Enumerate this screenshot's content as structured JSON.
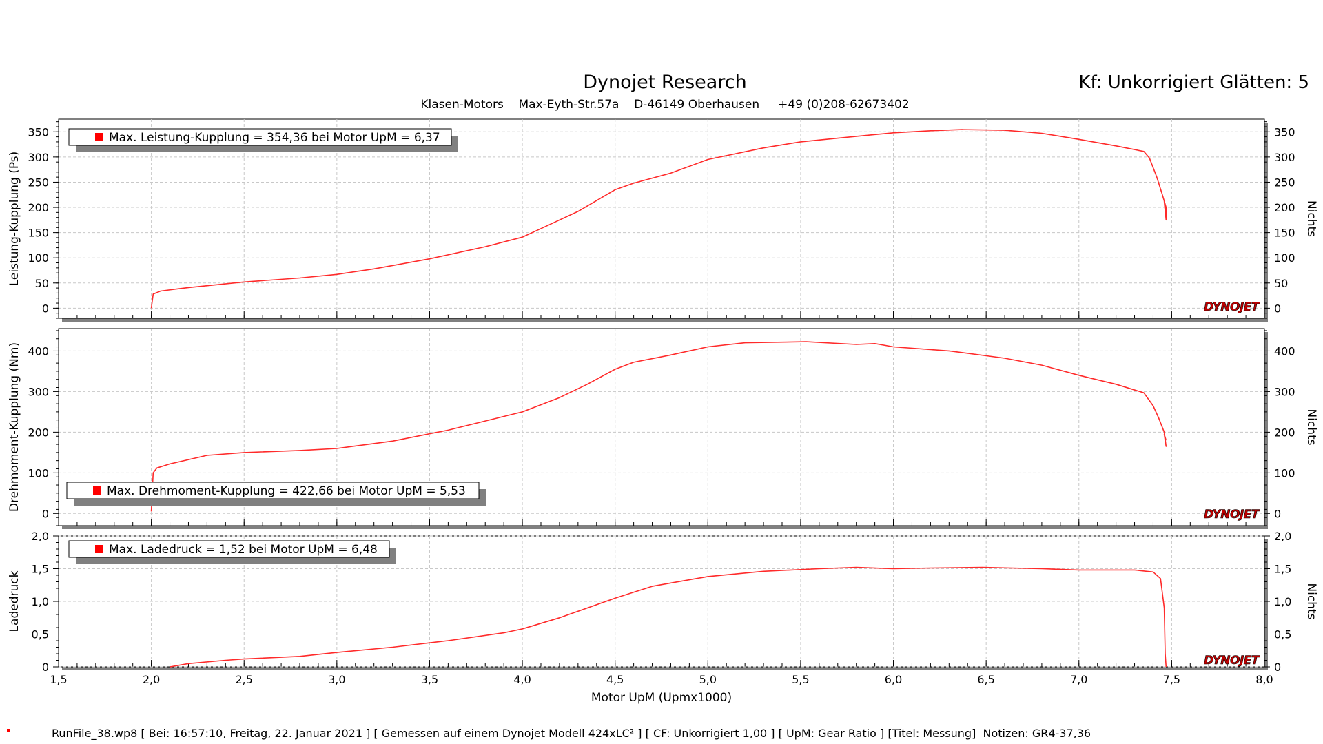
{
  "header": {
    "title": "Dynojet Research",
    "subtitle": "Klasen-Motors    Max-Eyth-Str.57a    D-46149 Oberhausen     +49 (0)208-62673402",
    "correction": "Kf: Unkorrigiert Glätten: 5"
  },
  "footer": {
    "text": "RunFile_38.wp8 [ Bei: 16:57:10, Freitag, 22. Januar 2021 ] [ Gemessen auf einem Dynojet Modell 424xLC² ] [ CF: Unkorrigiert 1,00 ] [ UpM: Gear Ratio ] [Titel: Messung]  Notizen: GR4-37,36"
  },
  "logo": {
    "text": "DYNOJET"
  },
  "colors": {
    "trace": "#ff2a2a",
    "legend_marker": "#ff0000",
    "shadow": "#808080",
    "grid": "#c8c8c8"
  },
  "chart_data": [
    {
      "type": "line",
      "ylabel": "Leistung-Kupplung (Ps)",
      "right_label": "Nichts",
      "xlabel": "Motor UpM (Upmx1000)",
      "xlim": [
        1.5,
        8.0
      ],
      "ylim": [
        -20,
        375
      ],
      "yticks": [
        0,
        50,
        100,
        150,
        200,
        250,
        300,
        350
      ],
      "ytick_labels": [
        "0",
        "50",
        "100",
        "150",
        "200",
        "250",
        "300",
        "350"
      ],
      "grid": true,
      "legend": "Max. Leistung-Kupplung = 354,36 bei Motor UpM = 6,37",
      "series": [
        {
          "name": "Leistung-Kupplung",
          "x": [
            2.0,
            2.01,
            2.05,
            2.2,
            2.5,
            2.8,
            3.0,
            3.2,
            3.5,
            3.8,
            4.0,
            4.1,
            4.3,
            4.5,
            4.6,
            4.8,
            5.0,
            5.3,
            5.5,
            5.8,
            6.0,
            6.2,
            6.37,
            6.6,
            6.8,
            7.0,
            7.2,
            7.35,
            7.38,
            7.42,
            7.45,
            7.47,
            7.47,
            7.46,
            7.47
          ],
          "y": [
            0,
            28,
            34,
            41,
            52,
            60,
            67,
            78,
            98,
            122,
            141,
            158,
            192,
            235,
            248,
            268,
            295,
            318,
            330,
            341,
            348,
            352,
            354.36,
            353,
            347,
            335,
            322,
            311,
            298,
            260,
            225,
            200,
            175,
            212,
            195
          ]
        }
      ]
    },
    {
      "type": "line",
      "ylabel": "Drehmoment-Kupplung (Nm)",
      "right_label": "Nichts",
      "xlabel": "Motor UpM (Upmx1000)",
      "xlim": [
        1.5,
        8.0
      ],
      "ylim": [
        -30,
        455
      ],
      "yticks": [
        0,
        100,
        200,
        300,
        400
      ],
      "ytick_labels": [
        "0",
        "100",
        "200",
        "300",
        "400"
      ],
      "grid": true,
      "legend": "Max. Drehmoment-Kupplung = 422,66 bei Motor UpM = 5,53",
      "series": [
        {
          "name": "Drehmoment-Kupplung",
          "x": [
            2.0,
            2.01,
            2.03,
            2.1,
            2.3,
            2.5,
            2.8,
            3.0,
            3.3,
            3.6,
            4.0,
            4.2,
            4.35,
            4.5,
            4.6,
            4.8,
            5.0,
            5.2,
            5.53,
            5.8,
            5.9,
            6.0,
            6.3,
            6.6,
            6.8,
            7.0,
            7.2,
            7.35,
            7.4,
            7.43,
            7.46,
            7.47,
            7.46,
            7.47
          ],
          "y": [
            5,
            100,
            112,
            122,
            143,
            150,
            155,
            160,
            178,
            205,
            250,
            285,
            318,
            355,
            372,
            390,
            410,
            420,
            422.66,
            416,
            418,
            410,
            400,
            382,
            365,
            340,
            318,
            297,
            265,
            235,
            200,
            165,
            195,
            180
          ]
        }
      ]
    },
    {
      "type": "line",
      "ylabel": "Ladedruck",
      "right_label": "Nichts",
      "xlabel": "Motor UpM (Upmx1000)",
      "xlim": [
        1.5,
        8.0
      ],
      "ylim": [
        0,
        2.0
      ],
      "yticks": [
        0,
        0.5,
        1.0,
        1.5,
        2.0
      ],
      "ytick_labels": [
        "0",
        "0,5",
        "1,0",
        "1,5",
        "2,0"
      ],
      "xticks": [
        1.5,
        2.0,
        2.5,
        3.0,
        3.5,
        4.0,
        4.5,
        5.0,
        5.5,
        6.0,
        6.5,
        7.0,
        7.5,
        8.0
      ],
      "xtick_labels": [
        "1,5",
        "2,0",
        "2,5",
        "3,0",
        "3,5",
        "4,0",
        "4,5",
        "5,0",
        "5,5",
        "6,0",
        "6,5",
        "7,0",
        "7,5",
        "8,0"
      ],
      "grid": true,
      "legend": "Max. Ladedruck = 1,52 bei Motor UpM = 6,48",
      "series": [
        {
          "name": "Ladedruck",
          "x": [
            2.1,
            2.2,
            2.4,
            2.5,
            2.8,
            3.0,
            3.3,
            3.6,
            3.9,
            4.0,
            4.2,
            4.5,
            4.7,
            5.0,
            5.3,
            5.6,
            5.8,
            6.0,
            6.2,
            6.48,
            6.8,
            7.0,
            7.3,
            7.4,
            7.44,
            7.46,
            7.465,
            7.47
          ],
          "y": [
            0.0,
            0.05,
            0.1,
            0.12,
            0.16,
            0.22,
            0.3,
            0.4,
            0.52,
            0.58,
            0.75,
            1.05,
            1.23,
            1.38,
            1.46,
            1.5,
            1.52,
            1.5,
            1.51,
            1.52,
            1.5,
            1.48,
            1.48,
            1.45,
            1.35,
            0.9,
            0.2,
            0.0
          ]
        }
      ]
    }
  ]
}
